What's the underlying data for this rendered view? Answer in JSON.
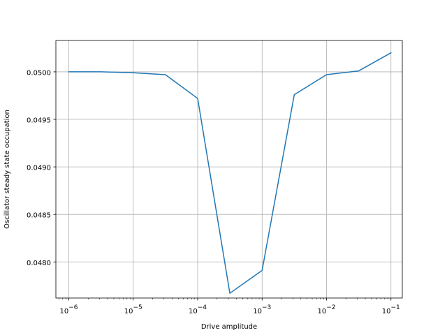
{
  "chart_data": {
    "type": "line",
    "x_scale": "log",
    "xlabel": "Drive amplitude",
    "ylabel": "Oscillator steady state occupation",
    "xlim": [
      6.3e-07,
      0.15
    ],
    "ylim": [
      0.04762,
      0.05033
    ],
    "grid": true,
    "x_ticks": [
      {
        "value": 1e-06,
        "base": "10",
        "exp": "−6"
      },
      {
        "value": 1e-05,
        "base": "10",
        "exp": "−5"
      },
      {
        "value": 0.0001,
        "base": "10",
        "exp": "−4"
      },
      {
        "value": 0.001,
        "base": "10",
        "exp": "−3"
      },
      {
        "value": 0.01,
        "base": "10",
        "exp": "−2"
      },
      {
        "value": 0.1,
        "base": "10",
        "exp": "−1"
      }
    ],
    "y_ticks": [
      {
        "value": 0.048,
        "label": "0.0480"
      },
      {
        "value": 0.0485,
        "label": "0.0485"
      },
      {
        "value": 0.049,
        "label": "0.0490"
      },
      {
        "value": 0.0495,
        "label": "0.0495"
      },
      {
        "value": 0.05,
        "label": "0.0500"
      }
    ],
    "series": [
      {
        "color": "#1f77b4",
        "x": [
          1e-06,
          3.16e-06,
          1e-05,
          3.16e-05,
          0.0001,
          0.000316,
          0.001,
          0.00316,
          0.01,
          0.0316,
          0.1
        ],
        "y": [
          0.05,
          0.05,
          0.04999,
          0.04997,
          0.04972,
          0.04767,
          0.04791,
          0.04976,
          0.04997,
          0.05001,
          0.0502
        ]
      }
    ]
  }
}
